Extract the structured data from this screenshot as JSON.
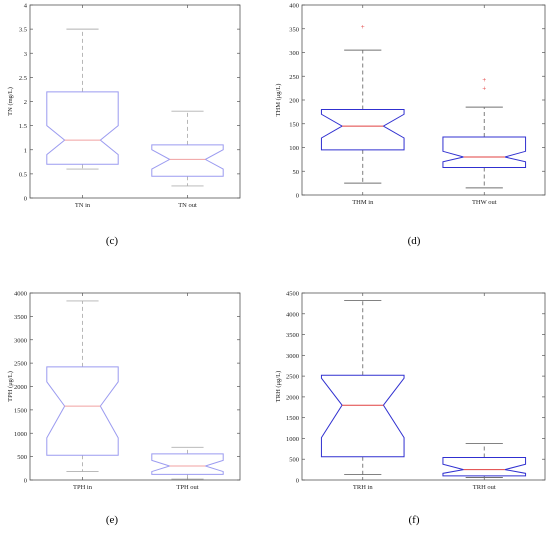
{
  "chart_data": [
    {
      "panel": "(c)",
      "type": "box",
      "ylabel": "TN (mg/L)",
      "ylim": [
        0,
        4
      ],
      "yticks": [
        0,
        0.5,
        1,
        1.5,
        2,
        2.5,
        3,
        3.5,
        4
      ],
      "ytick_labels": [
        "0",
        "0.5",
        "1",
        "1.5",
        "2",
        "2.5",
        "3",
        "3.5",
        "4"
      ],
      "categories": [
        "TN in",
        "TN out"
      ],
      "boxes": [
        {
          "name": "TN in",
          "whisker_low": 0.6,
          "q1": 0.7,
          "median": 1.2,
          "q3": 2.2,
          "whisker_high": 3.5,
          "notch_low": 0.9,
          "notch_high": 1.5,
          "outliers": []
        },
        {
          "name": "TN out",
          "whisker_low": 0.25,
          "q1": 0.45,
          "median": 0.8,
          "q3": 1.1,
          "whisker_high": 1.8,
          "notch_low": 0.6,
          "notch_high": 1.0,
          "outliers": []
        }
      ],
      "style": {
        "box": "#9b9bf0",
        "median": "#f0a0a0",
        "whisker": "#b0b0b0",
        "outlier": "#e05050"
      },
      "grid": false
    },
    {
      "panel": "(d)",
      "type": "box",
      "ylabel": "THM (μg/L)",
      "ylim": [
        0,
        400
      ],
      "yticks": [
        0,
        50,
        100,
        150,
        200,
        250,
        300,
        350,
        400
      ],
      "ytick_labels": [
        "0",
        "50",
        "100",
        "150",
        "200",
        "250",
        "300",
        "350",
        "400"
      ],
      "categories": [
        "THM in",
        "THW out"
      ],
      "boxes": [
        {
          "name": "THM in",
          "whisker_low": 25,
          "q1": 95,
          "median": 145,
          "q3": 180,
          "whisker_high": 305,
          "notch_low": 120,
          "notch_high": 170,
          "outliers": [
            355
          ]
        },
        {
          "name": "THW out",
          "whisker_low": 15,
          "q1": 58,
          "median": 80,
          "q3": 122,
          "whisker_high": 185,
          "notch_low": 70,
          "notch_high": 92,
          "outliers": [
            225,
            243
          ]
        }
      ],
      "style": {
        "box": "#3030d0",
        "median": "#e04040",
        "whisker": "#707070",
        "outlier": "#e03030"
      },
      "grid": false
    },
    {
      "panel": "(e)",
      "type": "box",
      "ylabel": "TPH (μg/L)",
      "ylim": [
        0,
        4000
      ],
      "yticks": [
        0,
        500,
        1000,
        1500,
        2000,
        2500,
        3000,
        3500,
        4000
      ],
      "ytick_labels": [
        "0",
        "500",
        "1000",
        "1500",
        "2000",
        "2500",
        "3000",
        "3500",
        "4000"
      ],
      "categories": [
        "TPH in",
        "TPH out"
      ],
      "boxes": [
        {
          "name": "TPH in",
          "whisker_low": 180,
          "q1": 530,
          "median": 1580,
          "q3": 2420,
          "whisker_high": 3830,
          "notch_low": 900,
          "notch_high": 2100,
          "outliers": []
        },
        {
          "name": "TPH out",
          "whisker_low": 20,
          "q1": 120,
          "median": 300,
          "q3": 560,
          "whisker_high": 700,
          "notch_low": 180,
          "notch_high": 420,
          "outliers": []
        }
      ],
      "style": {
        "box": "#9b9bf0",
        "median": "#f0a0a0",
        "whisker": "#b0b0b0",
        "outlier": "#e05050"
      },
      "grid": false
    },
    {
      "panel": "(f)",
      "type": "box",
      "ylabel": "TRH (μg/L)",
      "ylim": [
        0,
        4500
      ],
      "yticks": [
        0,
        500,
        1000,
        1500,
        2000,
        2500,
        3000,
        3500,
        4000,
        4500
      ],
      "ytick_labels": [
        "0",
        "500",
        "1000",
        "1500",
        "2000",
        "2500",
        "3000",
        "3500",
        "4000",
        "4500"
      ],
      "categories": [
        "TRH in",
        "TRH out"
      ],
      "boxes": [
        {
          "name": "TRH in",
          "whisker_low": 130,
          "q1": 560,
          "median": 1800,
          "q3": 2520,
          "whisker_high": 4320,
          "notch_low": 1020,
          "notch_high": 2450,
          "outliers": []
        },
        {
          "name": "TRH out",
          "whisker_low": 60,
          "q1": 100,
          "median": 250,
          "q3": 540,
          "whisker_high": 880,
          "notch_low": 160,
          "notch_high": 380,
          "outliers": []
        }
      ],
      "style": {
        "box": "#3030d0",
        "median": "#e04040",
        "whisker": "#707070",
        "outlier": "#e03030"
      },
      "grid": false
    }
  ]
}
